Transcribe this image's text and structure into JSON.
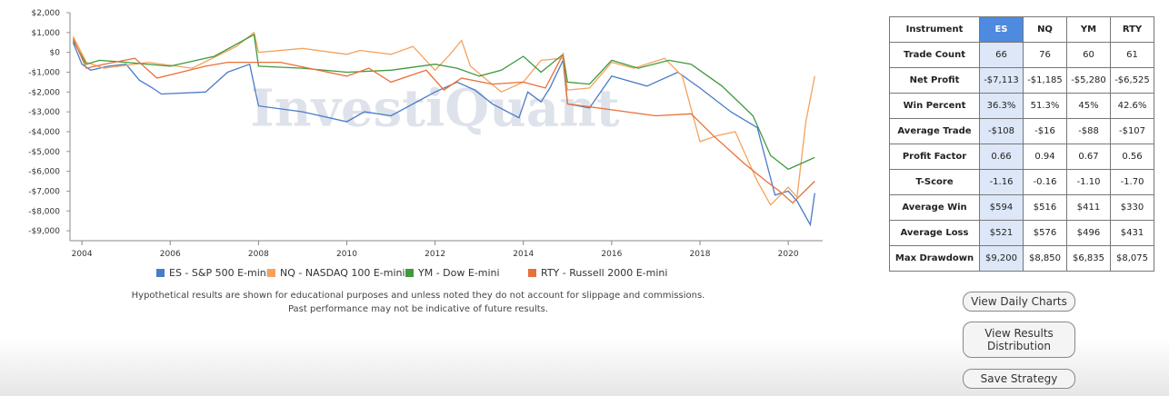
{
  "chart_data": {
    "type": "line",
    "watermark": "InvestiQuant",
    "xlim": [
      2003.73,
      2020.78
    ],
    "xticks": [
      2004,
      2006,
      2008,
      2010,
      2012,
      2014,
      2016,
      2018,
      2020
    ],
    "ylim": [
      -9500,
      2000
    ],
    "yticks": [
      {
        "value": 2000,
        "label": "$2,000"
      },
      {
        "value": 1000,
        "label": "$1,000"
      },
      {
        "value": 0,
        "label": "$0"
      },
      {
        "value": -1000,
        "label": "-$1,000"
      },
      {
        "value": -2000,
        "label": "-$2,000"
      },
      {
        "value": -3000,
        "label": "-$3,000"
      },
      {
        "value": -4000,
        "label": "-$4,000"
      },
      {
        "value": -5000,
        "label": "-$5,000"
      },
      {
        "value": -6000,
        "label": "-$6,000"
      },
      {
        "value": -7000,
        "label": "-$7,000"
      },
      {
        "value": -8000,
        "label": "-$8,000"
      },
      {
        "value": -9000,
        "label": "-$9,000"
      }
    ],
    "series": [
      {
        "name": "ES - S&P 500 E-mini",
        "color": "#4a7bc8",
        "x": [
          2003.8,
          2004.0,
          2004.2,
          2004.6,
          2005.0,
          2005.3,
          2005.6,
          2005.8,
          2006.8,
          2007.3,
          2007.8,
          2008.0,
          2009.0,
          2010.0,
          2010.4,
          2011.0,
          2012.0,
          2012.5,
          2012.9,
          2013.3,
          2013.9,
          2014.1,
          2014.4,
          2014.6,
          2014.9,
          2015.0,
          2015.5,
          2016.0,
          2016.8,
          2017.5,
          2018.0,
          2018.7,
          2019.3,
          2019.7,
          2020.0,
          2020.2,
          2020.5,
          2020.6
        ],
        "values": [
          500,
          -600,
          -900,
          -700,
          -600,
          -1400,
          -1800,
          -2100,
          -2000,
          -1000,
          -600,
          -2700,
          -3000,
          -3500,
          -3000,
          -3200,
          -2000,
          -1500,
          -1900,
          -2600,
          -3300,
          -2000,
          -2500,
          -1800,
          -400,
          -2600,
          -2800,
          -1200,
          -1700,
          -1000,
          -1800,
          -3000,
          -3800,
          -7200,
          -7000,
          -7500,
          -8700,
          -7100
        ]
      },
      {
        "name": "NQ - NASDAQ 100 E-mini",
        "color": "#f5a25d",
        "x": [
          2003.8,
          2004.1,
          2004.5,
          2005.5,
          2006.5,
          2007.5,
          2007.9,
          2008.0,
          2009.0,
          2010.0,
          2010.3,
          2011.0,
          2011.5,
          2012.0,
          2012.3,
          2012.6,
          2012.8,
          2013.5,
          2014.0,
          2014.4,
          2014.9,
          2015.0,
          2015.5,
          2016.0,
          2016.5,
          2017.2,
          2017.6,
          2018.0,
          2018.4,
          2018.8,
          2019.3,
          2019.6,
          2020.0,
          2020.2,
          2020.4,
          2020.6
        ],
        "values": [
          800,
          -500,
          -800,
          -500,
          -800,
          300,
          1000,
          0,
          200,
          -100,
          100,
          -100,
          300,
          -900,
          -200,
          600,
          -700,
          -2000,
          -1500,
          -400,
          -300,
          -1900,
          -1800,
          -500,
          -800,
          -300,
          -1200,
          -4500,
          -4200,
          -4000,
          -6500,
          -7700,
          -6800,
          -7300,
          -3500,
          -1200
        ]
      },
      {
        "name": "YM - Dow E-mini",
        "color": "#3d9a3d",
        "x": [
          2003.8,
          2004.1,
          2004.4,
          2005.0,
          2006.0,
          2007.0,
          2007.9,
          2008.0,
          2009.0,
          2010.0,
          2011.0,
          2012.0,
          2012.5,
          2013.0,
          2013.5,
          2014.0,
          2014.4,
          2014.9,
          2015.0,
          2015.5,
          2016.0,
          2016.6,
          2017.3,
          2017.8,
          2018.5,
          2019.2,
          2019.6,
          2020.0,
          2020.3,
          2020.6
        ],
        "values": [
          600,
          -600,
          -400,
          -500,
          -700,
          -200,
          900,
          -700,
          -800,
          -1000,
          -900,
          -600,
          -800,
          -1200,
          -900,
          -200,
          -1000,
          -100,
          -1500,
          -1600,
          -400,
          -800,
          -400,
          -600,
          -1700,
          -3200,
          -5200,
          -5900,
          -5600,
          -5300
        ]
      },
      {
        "name": "RTY - Russell 2000 E-mini",
        "color": "#e8703a",
        "x": [
          2003.8,
          2004.1,
          2004.5,
          2005.2,
          2005.7,
          2006.8,
          2007.3,
          2008.5,
          2010.0,
          2010.5,
          2011.0,
          2011.8,
          2012.2,
          2012.6,
          2013.3,
          2014.0,
          2014.5,
          2014.9,
          2015.0,
          2016.0,
          2017.0,
          2017.8,
          2018.3,
          2019.0,
          2019.5,
          2019.8,
          2020.1,
          2020.6
        ],
        "values": [
          700,
          -800,
          -600,
          -300,
          -1300,
          -700,
          -500,
          -500,
          -1200,
          -800,
          -1500,
          -900,
          -1900,
          -1300,
          -1600,
          -1500,
          -1800,
          -100,
          -2600,
          -2900,
          -3200,
          -3100,
          -4200,
          -5600,
          -6500,
          -7000,
          -7600,
          -6500
        ]
      }
    ]
  },
  "disclaimer": [
    "Hypothetical results are shown for educational purposes and unless noted they do not account for slippage and commissions.",
    "Past performance may not be indicative of future results."
  ],
  "table": {
    "header": [
      "Instrument",
      "ES",
      "NQ",
      "YM",
      "RTY"
    ],
    "rows": [
      [
        "Trade Count",
        "66",
        "76",
        "60",
        "61"
      ],
      [
        "Net Profit",
        "-$7,113",
        "-$1,185",
        "-$5,280",
        "-$6,525"
      ],
      [
        "Win Percent",
        "36.3%",
        "51.3%",
        "45%",
        "42.6%"
      ],
      [
        "Average Trade",
        "-$108",
        "-$16",
        "-$88",
        "-$107"
      ],
      [
        "Profit Factor",
        "0.66",
        "0.94",
        "0.67",
        "0.56"
      ],
      [
        "T-Score",
        "-1.16",
        "-0.16",
        "-1.10",
        "-1.70"
      ],
      [
        "Average Win",
        "$594",
        "$516",
        "$411",
        "$330"
      ],
      [
        "Average Loss",
        "$521",
        "$576",
        "$496",
        "$431"
      ],
      [
        "Max Drawdown",
        "$9,200",
        "$8,850",
        "$6,835",
        "$8,075"
      ]
    ]
  },
  "buttons": [
    "View Daily Charts",
    "View Results Distribution",
    "Save Strategy"
  ]
}
